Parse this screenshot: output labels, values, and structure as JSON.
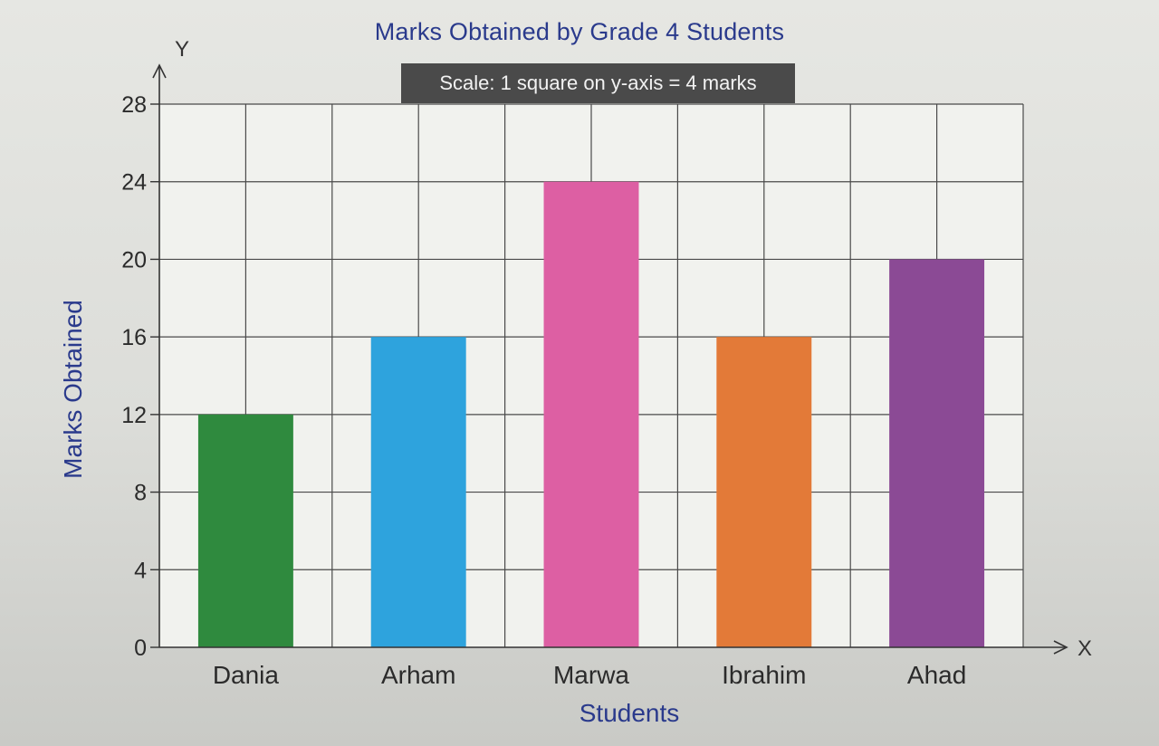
{
  "chart_data": {
    "type": "bar",
    "title": "Marks Obtained by Grade 4 Students",
    "subtitle": "Scale: 1 square on y-axis = 4 marks",
    "xlabel": "Students",
    "ylabel": "Marks Obtained",
    "x_axis_letter": "X",
    "y_axis_letter": "Y",
    "categories": [
      "Dania",
      "Arham",
      "Marwa",
      "Ibrahim",
      "Ahad"
    ],
    "values": [
      12,
      16,
      24,
      16,
      20
    ],
    "colors": [
      "#2f8a3e",
      "#2ea3dd",
      "#dd5fa3",
      "#e37a38",
      "#8b4a95"
    ],
    "yticks": [
      0,
      4,
      8,
      12,
      16,
      20,
      24,
      28
    ],
    "ylim": [
      0,
      28
    ],
    "grid": true
  }
}
